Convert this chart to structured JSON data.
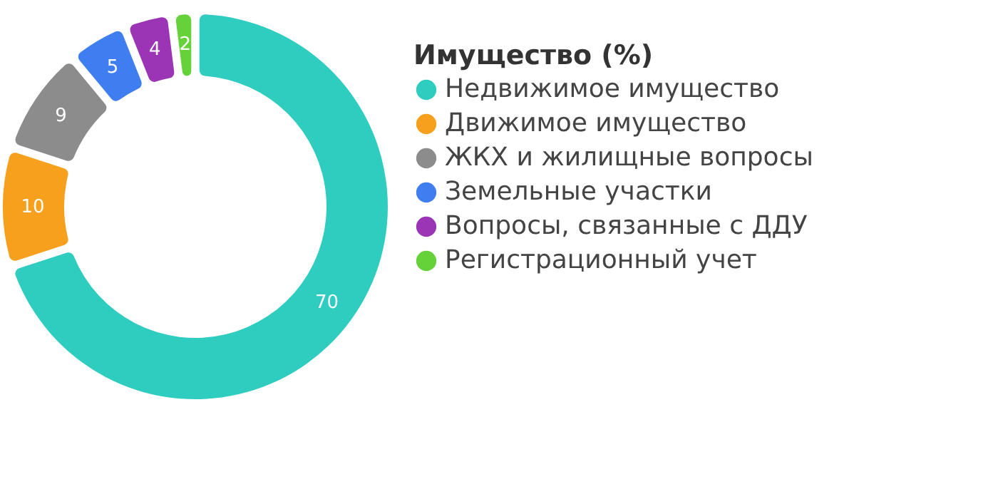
{
  "chart_data": {
    "type": "donut",
    "legend_title": "Имущество (%)",
    "categories": [
      "Недвижимое имущество",
      "Движимое имущество",
      "ЖКХ и жилищные вопросы",
      "Земельные участки",
      "Вопросы, связанные с ДДУ",
      "Регистрационный учет"
    ],
    "values": [
      70,
      10,
      9,
      5,
      4,
      2
    ],
    "colors": [
      "#2ecdc0",
      "#f7a01e",
      "#8c8c8c",
      "#3f7ef0",
      "#9b35b5",
      "#66d23a"
    ],
    "data_labels": true,
    "legend": "right"
  }
}
